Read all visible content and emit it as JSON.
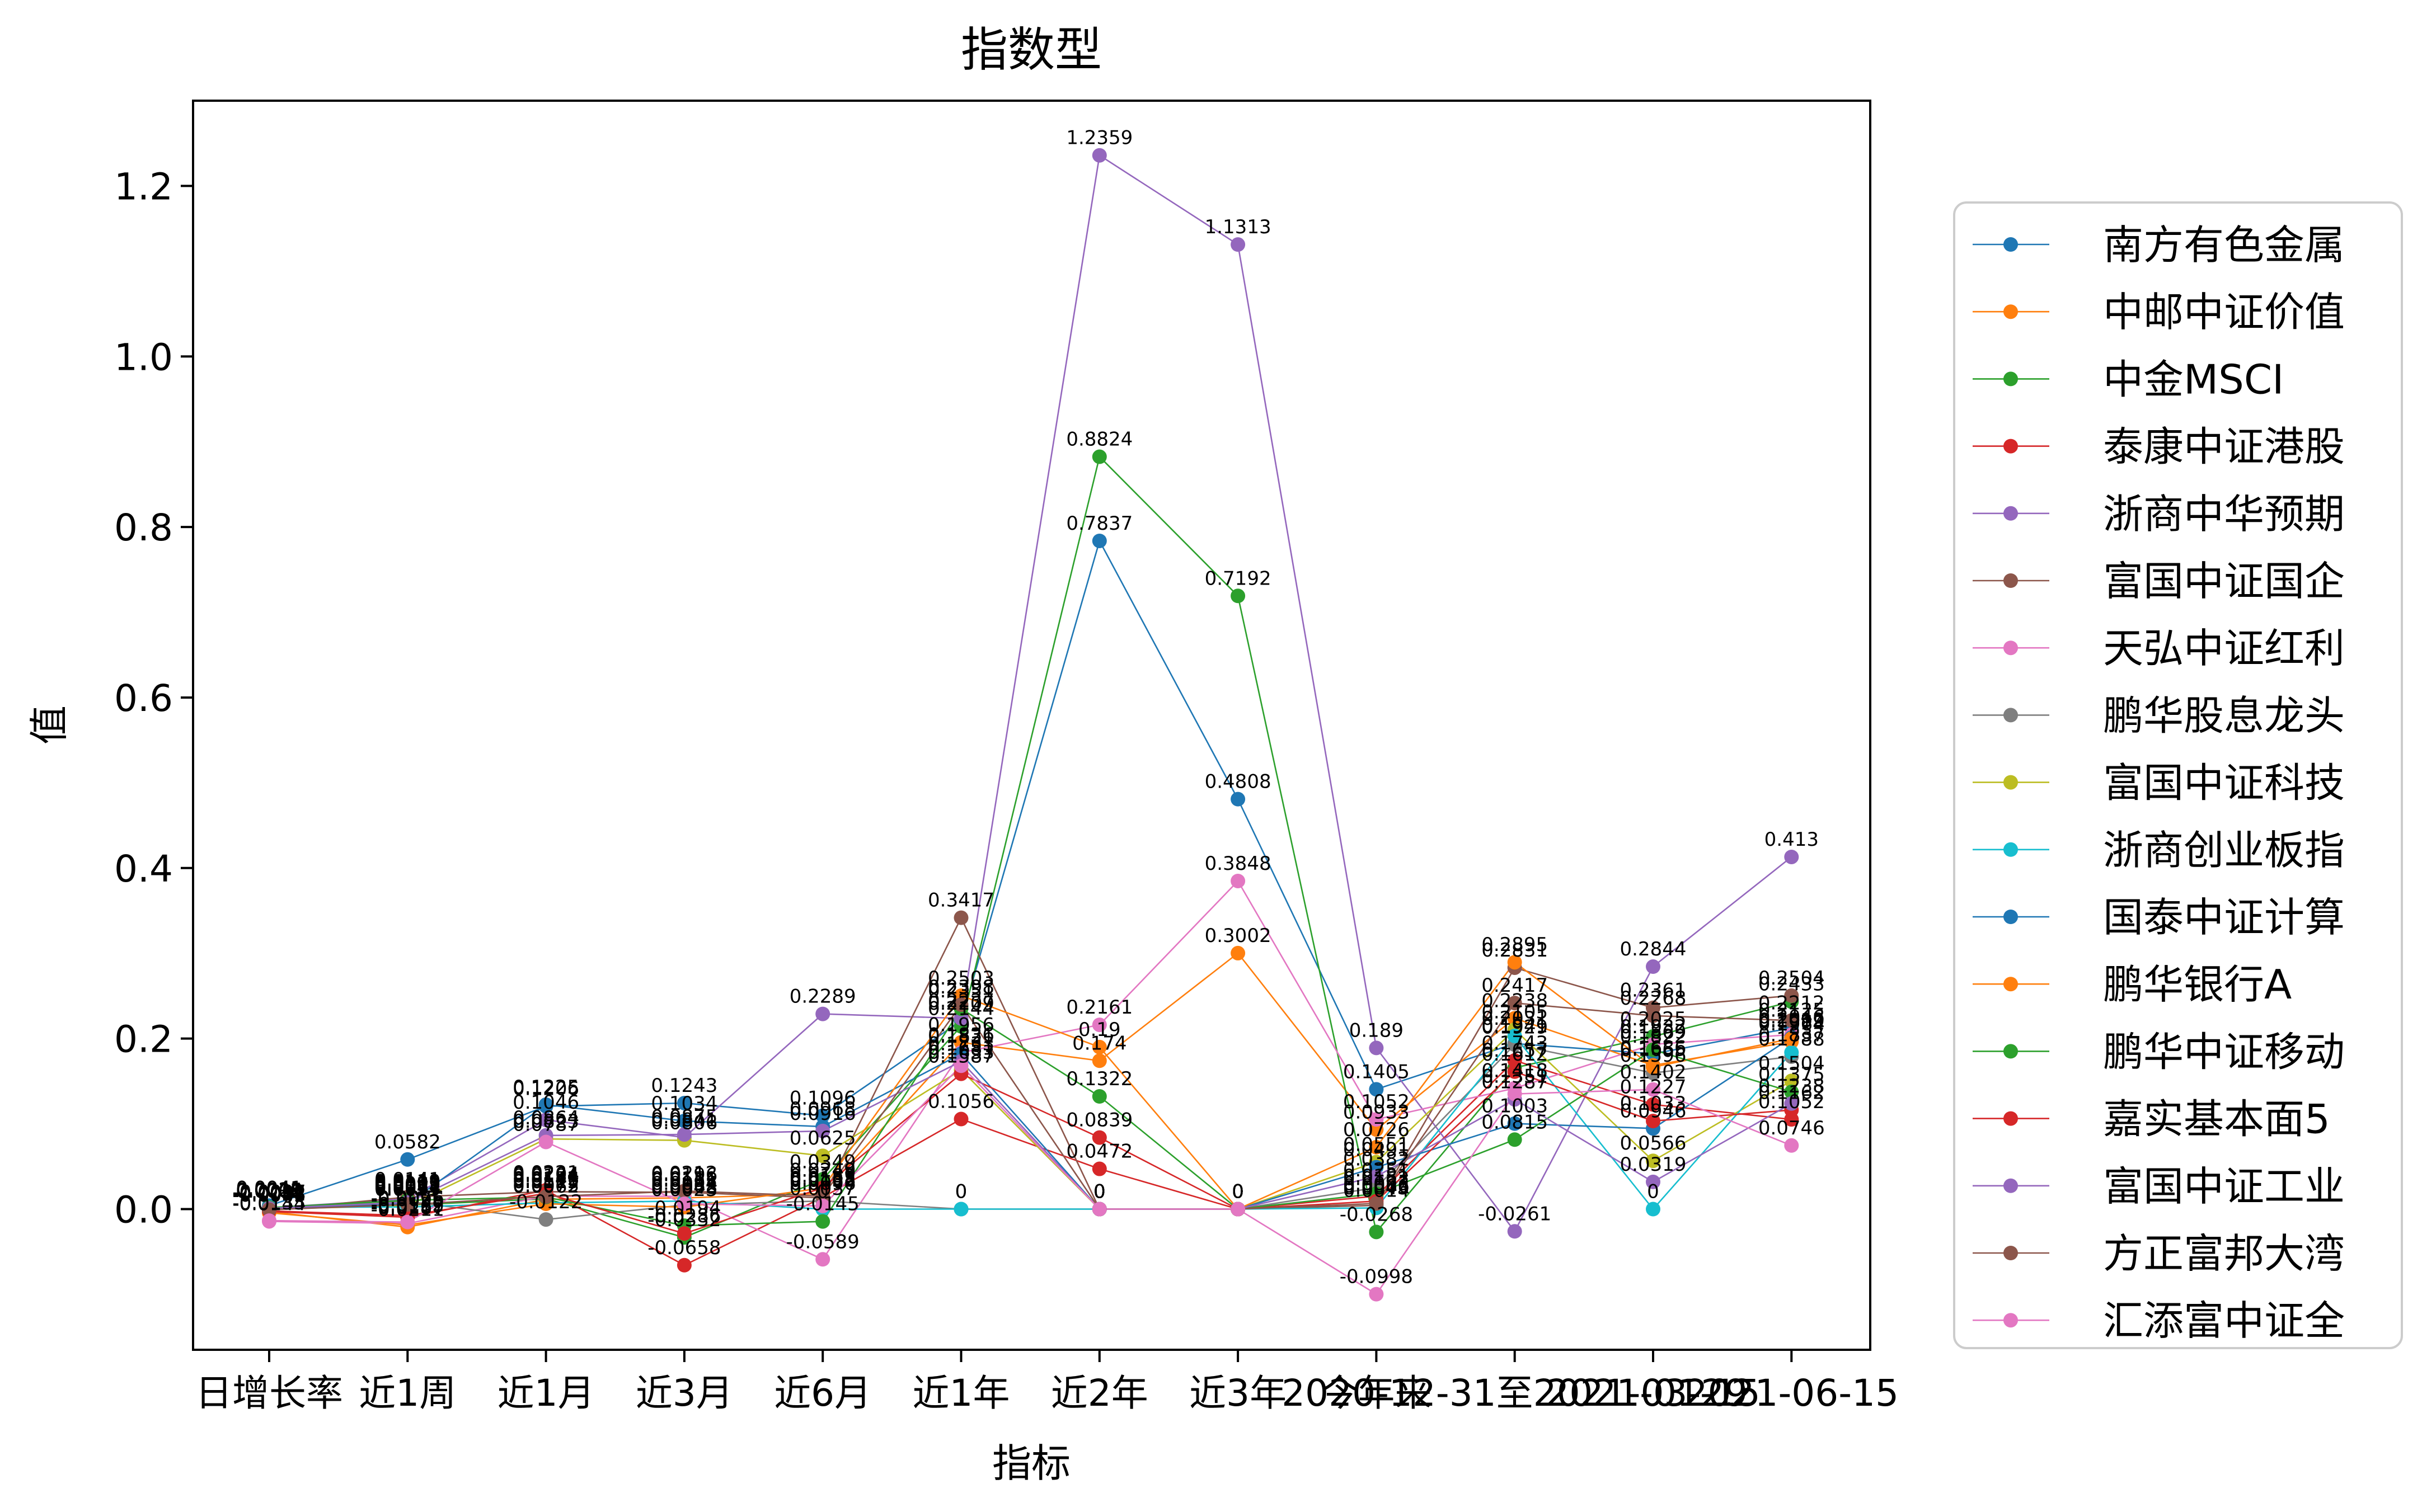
{
  "chart_data": {
    "type": "line",
    "title": "指数型",
    "xlabel": "指标",
    "ylabel": "值",
    "categories": [
      "日增长率",
      "近1周",
      "近1月",
      "近3月",
      "近6月",
      "近1年",
      "近2年",
      "近3年",
      "今年来",
      "2020-12-31至2021-03-29",
      "2021-01-15",
      "2021-06-15"
    ],
    "x_tick_labels": [
      "日增长率",
      "近1周",
      "近1月",
      "近3月",
      "近6月",
      "近1年",
      "近2年",
      "近3年",
      "今年来",
      "2020-12-31至2021-03-29",
      "2021-01-15",
      "2021-06-15"
    ],
    "ylim": [
      -0.165,
      1.3
    ],
    "yticks": [
      0.0,
      0.2,
      0.4,
      0.6,
      0.8,
      1.0,
      1.2
    ],
    "ytick_labels": [
      "0.0",
      "0.2",
      "0.4",
      "0.6",
      "0.8",
      "1.0",
      "1.2"
    ],
    "legend_position": "right, outside plot",
    "grid": false,
    "series": [
      {
        "name": "南方有色金属",
        "color": "#1f77b4",
        "values": [
          0.0041,
          0.0582,
          0.1206,
          0.1243,
          0.1096,
          0.2209,
          0.7837,
          0.4808,
          0.1405,
          0.1941,
          0.1822,
          0.2125
        ],
        "labels": [
          "0.0041",
          "0.0582",
          "0.1206",
          "0.1243",
          "0.1096",
          "0.2209",
          "0.7837",
          "0.4808",
          "0.1405",
          "0.1941",
          "0.1822",
          "0.2125"
        ]
      },
      {
        "name": "中邮中证价值",
        "color": "#ff7f0e",
        "values": [
          -0.0031,
          -0.0211,
          0.0115,
          0.0131,
          0.0183,
          0.1956,
          0.174,
          0.3002,
          0.0933,
          0.2238,
          0.1686,
          0.1964
        ],
        "labels": [
          "-0.0031",
          "-0.0211",
          "0.0115",
          "0.0131",
          "0.0183",
          "0.1956",
          "0.174",
          "0.3002",
          "0.0933",
          "0.2238",
          "0.1686",
          "0.1964"
        ]
      },
      {
        "name": "中金MSCI",
        "color": "#2ca02c",
        "values": [
          0.0012,
          0.0047,
          0.0121,
          -0.0332,
          0.0349,
          0.2144,
          0.8824,
          0.7192,
          -0.0268,
          0.1657,
          0.2025,
          0.2433
        ],
        "labels": [
          "0.0012",
          "0.0047",
          "0.0121",
          "-0.0332",
          "0.0349",
          "0.2144",
          "0.8824",
          "0.7192",
          "-0.0268",
          "0.1657",
          "0.2025",
          "0.2433"
        ]
      },
      {
        "name": "泰康中证港股",
        "color": "#d62728",
        "values": [
          -0.0028,
          -0.0096,
          0.0221,
          -0.0658,
          0.0138,
          0.1056,
          0.0472,
          0.0,
          0.0152,
          0.1743,
          0.1227,
          0.1052
        ],
        "labels": [
          "-0.0028",
          "-0.0096",
          "0.0221",
          "-0.0658",
          "0.0138",
          "0.1056",
          "0.0472",
          "0",
          "0.0152",
          "0.1743",
          "0.1227",
          "0.1052"
        ]
      },
      {
        "name": "浙商中华预期",
        "color": "#9467bd",
        "values": [
          0.0015,
          0.0119,
          0.1046,
          0.0841,
          0.2289,
          0.2237,
          1.2359,
          1.1313,
          0.189,
          -0.0261,
          0.2844,
          0.413
        ],
        "labels": [
          "0.0015",
          "0.0119",
          "0.1046",
          "0.0841",
          "0.2289",
          "0.2237",
          "1.2359",
          "1.1313",
          "0.189",
          "-0.0261",
          "0.2844",
          "0.413"
        ]
      },
      {
        "name": "富国中证国企",
        "color": "#8c564b",
        "values": [
          -0.0012,
          0.0141,
          0.0204,
          0.0196,
          0.0132,
          0.3417,
          0.0,
          0.0,
          0.0043,
          0.2831,
          0.2361,
          0.2504
        ],
        "labels": [
          "-0.0012",
          "0.0141",
          "0.0204",
          "0.0196",
          "0.0132",
          "0.3417",
          "0",
          "0",
          "0.0043",
          "0.2831",
          "0.2361",
          "0.2504"
        ]
      },
      {
        "name": "天弘中证红利",
        "color": "#e377c2",
        "values": [
          -0.0144,
          -0.0169,
          0.0152,
          0.0151,
          -0.0589,
          0.1836,
          0.2161,
          0.3848,
          0.1052,
          0.1418,
          0.1932,
          0.2046
        ],
        "labels": [
          "-0.0144",
          "-0.0169",
          "0.0152",
          "0.0151",
          "-0.0589",
          "0.1836",
          "0.2161",
          "0.3848",
          "0.1052",
          "0.1418",
          "0.1932",
          "0.2046"
        ]
      },
      {
        "name": "鹏华股息龙头",
        "color": "#7f7f7f",
        "values": [
          0.0006,
          0.0091,
          -0.0122,
          0.0048,
          0.0096,
          0.0,
          0.0,
          0.0,
          0.0251,
          0.1929,
          0.1596,
          0.1788
        ],
        "labels": [
          "0.0006",
          "0.0091",
          "-0.0122",
          "0.0048",
          "0.0096",
          "0",
          "0",
          "0",
          "0.0251",
          "0.1929",
          "0.1596",
          "0.1788"
        ]
      },
      {
        "name": "富国中证科技",
        "color": "#bcbd22",
        "values": [
          0.0003,
          0.0037,
          0.0823,
          0.0806,
          0.0625,
          0.1633,
          0.0,
          0.0,
          0.0551,
          0.2105,
          0.0566,
          0.1504
        ],
        "labels": [
          "0.0003",
          "0.0037",
          "0.0823",
          "0.0806",
          "0.0625",
          "0.1633",
          "0",
          "0",
          "0.0551",
          "0.2105",
          "0.0566",
          "0.1504"
        ]
      },
      {
        "name": "浙商创业板指",
        "color": "#17becf",
        "values": [
          0.0021,
          0.0025,
          0.0073,
          0.0094,
          0.0,
          0.0,
          0.0,
          0.0,
          0.0014,
          0.2031,
          0.0,
          0.1837
        ],
        "labels": [
          "0.0021",
          "0.0025",
          "0.0073",
          "0.0094",
          "0",
          "0",
          "0",
          "0",
          "0.0014",
          "0.2031",
          "0",
          "0.1837"
        ]
      },
      {
        "name": "国泰中证计算",
        "color": "#1f77b4",
        "values": [
          0.0008,
          0.0062,
          0.1225,
          0.1034,
          0.0968,
          0.1821,
          0.0,
          0.0,
          0.0491,
          0.1003,
          0.0946,
          0.2012
        ],
        "labels": [
          "0.0008",
          "0.0062",
          "0.1225",
          "0.1034",
          "0.0968",
          "0.1821",
          "0",
          "0",
          "0.0491",
          "0.1003",
          "0.0946",
          "0.2012"
        ]
      },
      {
        "name": "鹏华银行A",
        "color": "#ff7f0e",
        "values": [
          -0.0043,
          -0.0187,
          0.0062,
          0.0023,
          0.0248,
          0.2503,
          0.19,
          0.0,
          0.0726,
          0.2895,
          0.1665,
          0.1999
        ],
        "labels": [
          "-0.0043",
          "-0.0187",
          "0.0062",
          "0.0023",
          "0.0248",
          "0.2503",
          "0.19",
          "0",
          "0.0726",
          "0.2895",
          "0.1665",
          "0.1999"
        ]
      },
      {
        "name": "鹏华中证移动",
        "color": "#2ca02c",
        "values": [
          0.0018,
          0.0103,
          0.0141,
          -0.0194,
          -0.0145,
          0.2351,
          0.1322,
          0.0,
          0.0181,
          0.0815,
          0.1869,
          0.1375
        ],
        "labels": [
          "0.0018",
          "0.0103",
          "0.0141",
          "-0.0194",
          "-0.0145",
          "0.2351",
          "0.1322",
          "0",
          "0.0181",
          "0.0815",
          "0.1869",
          "0.1375"
        ]
      },
      {
        "name": "嘉实基本面5",
        "color": "#d62728",
        "values": [
          -0.0021,
          -0.0076,
          0.0184,
          -0.0286,
          0.0249,
          0.1587,
          0.0839,
          0.0,
          0.0093,
          0.1612,
          0.1033,
          0.1162
        ],
        "labels": [
          "-0.0021",
          "-0.0076",
          "0.0184",
          "-0.0286",
          "0.0249",
          "0.1587",
          "0.0839",
          "0",
          "0.0093",
          "0.1612",
          "0.1033",
          "0.1162"
        ]
      },
      {
        "name": "富国中证工业",
        "color": "#9467bd",
        "values": [
          0.0009,
          0.0079,
          0.0864,
          0.0875,
          0.0916,
          0.1733,
          0.0,
          0.0,
          0.0382,
          0.1287,
          0.0319,
          0.1238
        ],
        "labels": [
          "0.0009",
          "0.0079",
          "0.0864",
          "0.0875",
          "0.0916",
          "0.1733",
          "0",
          "0",
          "0.0382",
          "0.1287",
          "0.0319",
          "0.1238"
        ]
      },
      {
        "name": "方正富邦大湾",
        "color": "#8c564b",
        "values": [
          -0.0007,
          0.0054,
          0.0146,
          0.0212,
          0.0153,
          0.2398,
          0.0,
          0.0,
          0.0066,
          0.2417,
          0.2268,
          0.2212
        ],
        "labels": [
          "-0.0007",
          "0.0054",
          "0.0146",
          "0.0212",
          "0.0153",
          "0.2398",
          "0",
          "0",
          "0.0066",
          "0.2417",
          "0.2268",
          "0.2212"
        ]
      },
      {
        "name": "汇添富中证全",
        "color": "#e377c2",
        "values": [
          -0.0135,
          -0.0152,
          0.0787,
          0.0062,
          0.0037,
          0.1681,
          0.0,
          0.0,
          -0.0998,
          0.1351,
          0.1402,
          0.0746
        ],
        "labels": [
          "-0.0135",
          "-0.0152",
          "0.0787",
          "0.0062",
          "0.0037",
          "0.1681",
          "0",
          "0",
          "-0.0998",
          "0.1351",
          "0.1402",
          "0.0746"
        ]
      }
    ]
  }
}
